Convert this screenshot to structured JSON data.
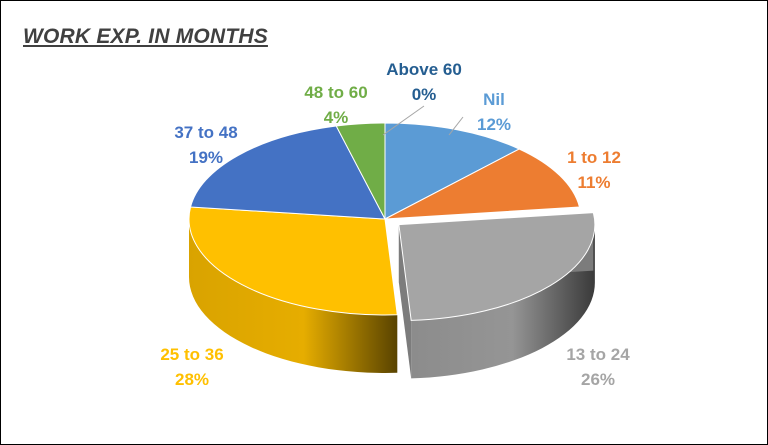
{
  "chart_data": {
    "type": "pie",
    "style": "3d-exploded",
    "title": "WORK EXP. IN MONTHS",
    "slices": [
      {
        "label": "Nil",
        "percent_label": "12%",
        "value": 12,
        "color": "#5B9BD5"
      },
      {
        "label": "1 to 12",
        "percent_label": "11%",
        "value": 11,
        "color": "#ED7D31"
      },
      {
        "label": "13 to 24",
        "percent_label": "26%",
        "value": 26,
        "color": "#A5A5A5"
      },
      {
        "label": "25 to 36",
        "percent_label": "28%",
        "value": 28,
        "color": "#FFC000"
      },
      {
        "label": "37 to 48",
        "percent_label": "19%",
        "value": 19,
        "color": "#4472C4"
      },
      {
        "label": "48 to 60",
        "percent_label": "4%",
        "value": 4,
        "color": "#70AD47"
      },
      {
        "label": "Above 60",
        "percent_label": "0%",
        "value": 0,
        "color": "#255E91"
      }
    ],
    "label_colors": {
      "Nil": "#5B9BD5",
      "1 to 12": "#ED7D31",
      "13 to 24": "#A5A5A5",
      "25 to 36": "#FFC000",
      "37 to 48": "#4472C4",
      "48 to 60": "#70AD47",
      "Above 60": "#255E91"
    }
  }
}
